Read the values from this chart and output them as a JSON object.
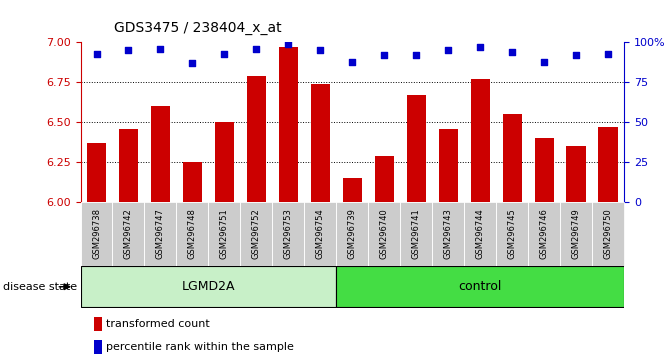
{
  "title": "GDS3475 / 238404_x_at",
  "samples": [
    "GSM296738",
    "GSM296742",
    "GSM296747",
    "GSM296748",
    "GSM296751",
    "GSM296752",
    "GSM296753",
    "GSM296754",
    "GSM296739",
    "GSM296740",
    "GSM296741",
    "GSM296743",
    "GSM296744",
    "GSM296745",
    "GSM296746",
    "GSM296749",
    "GSM296750"
  ],
  "bar_values": [
    6.37,
    6.46,
    6.6,
    6.25,
    6.5,
    6.79,
    6.97,
    6.74,
    6.15,
    6.29,
    6.67,
    6.46,
    6.77,
    6.55,
    6.4,
    6.35,
    6.47
  ],
  "dot_values": [
    93,
    95,
    96,
    87,
    93,
    96,
    99,
    95,
    88,
    92,
    92,
    95,
    97,
    94,
    88,
    92,
    93
  ],
  "groups": [
    {
      "label": "LGMD2A",
      "count": 8,
      "color": "#C8F0C8"
    },
    {
      "label": "control",
      "count": 9,
      "color": "#44DD44"
    }
  ],
  "ylim_left": [
    6.0,
    7.0
  ],
  "ylim_right": [
    0,
    100
  ],
  "yticks_left": [
    6.0,
    6.25,
    6.5,
    6.75,
    7.0
  ],
  "yticks_right": [
    0,
    25,
    50,
    75,
    100
  ],
  "ytick_right_labels": [
    "0",
    "25",
    "50",
    "75",
    "100%"
  ],
  "bar_color": "#CC0000",
  "dot_color": "#0000CC",
  "sample_box_color": "#CCCCCC",
  "legend_items": [
    {
      "label": "transformed count",
      "color": "#CC0000"
    },
    {
      "label": "percentile rank within the sample",
      "color": "#0000CC"
    }
  ],
  "disease_state_label": "disease state",
  "left_axis_color": "#CC0000",
  "right_axis_color": "#0000CC"
}
